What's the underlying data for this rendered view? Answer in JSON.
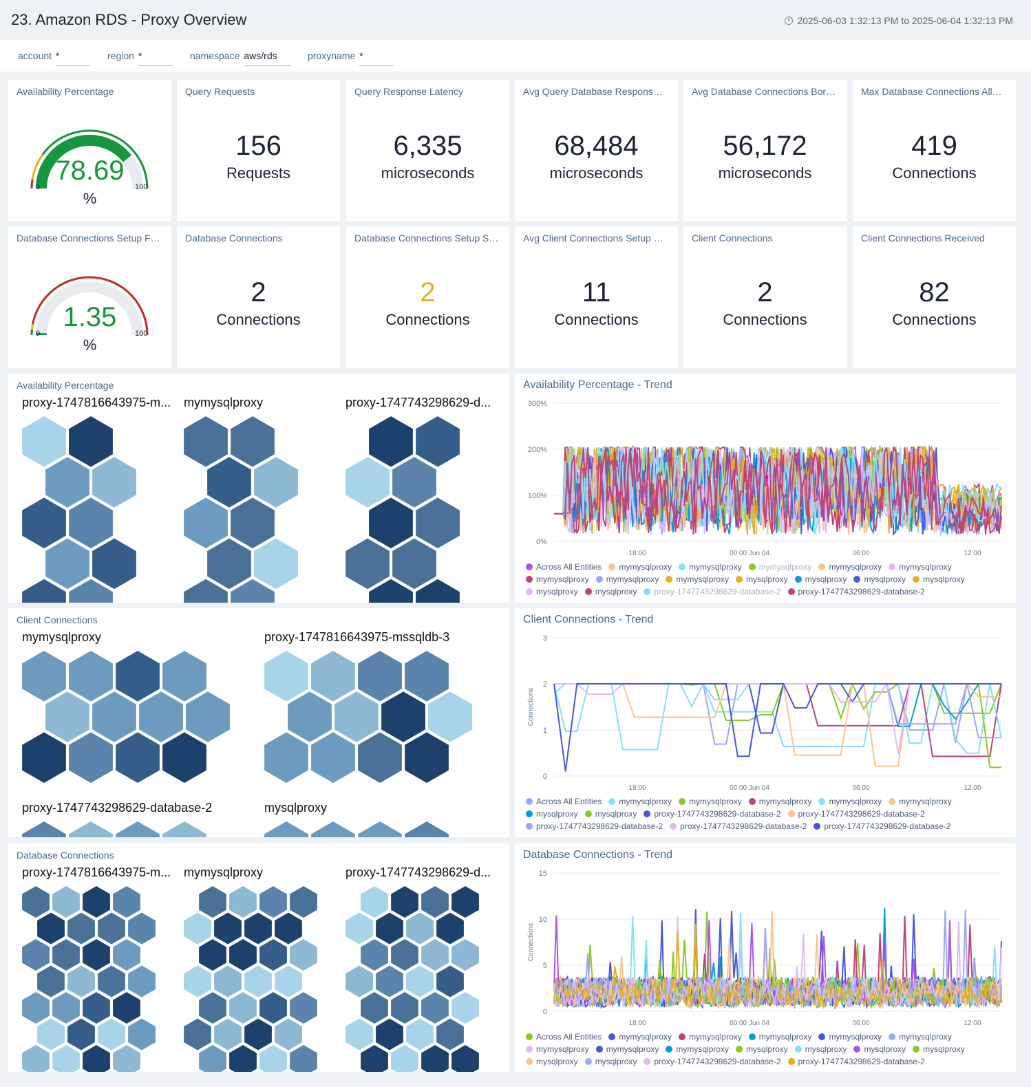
{
  "header": {
    "title": "23. Amazon RDS - Proxy Overview",
    "time_range": "2025-06-03 1:32:13 PM to 2025-06-04 1:32:13 PM"
  },
  "filters": [
    {
      "label": "account",
      "value": "*"
    },
    {
      "label": "region",
      "value": "*"
    },
    {
      "label": "namespace",
      "value": "aws/rds"
    },
    {
      "label": "proxyname",
      "value": "*"
    }
  ],
  "gauges": [
    {
      "title": "Availability Percentage",
      "value": "78.69",
      "fraction": 0.7869,
      "unit": "%",
      "min": "0",
      "max": "100",
      "color": "#16963f"
    },
    {
      "title": "Database Connections Setup Failed",
      "value": "1.35",
      "fraction": 0.0135,
      "unit": "%",
      "min": "0",
      "max": "100",
      "color": "#16963f"
    }
  ],
  "stats": [
    {
      "title": "Query Requests",
      "value": "156",
      "unit": "Requests",
      "color": "#1c2333"
    },
    {
      "title": "Query Response Latency",
      "value": "6,335",
      "unit": "microseconds",
      "color": "#1c2333"
    },
    {
      "title": "Avg Query Database Response Latency",
      "value": "68,484",
      "unit": "microseconds",
      "color": "#1c2333"
    },
    {
      "title": "Avg Database Connections Borrow Latency",
      "value": "56,172",
      "unit": "microseconds",
      "color": "#1c2333"
    },
    {
      "title": "Max Database Connections Allowed",
      "value": "419",
      "unit": "Connections",
      "color": "#1c2333"
    },
    {
      "title": "Database Connections",
      "value": "2",
      "unit": "Connections",
      "color": "#1c2333"
    },
    {
      "title": "Database Connections Setup Succeeded",
      "value": "2",
      "unit": "Connections",
      "color": "#e0b320"
    },
    {
      "title": "Avg Client Connections Setup Succeeded",
      "value": "11",
      "unit": "Connections",
      "color": "#1c2333"
    },
    {
      "title": "Client Connections",
      "value": "2",
      "unit": "Connections",
      "color": "#1c2333"
    },
    {
      "title": "Client Connections Received",
      "value": "82",
      "unit": "Connections",
      "color": "#1c2333"
    }
  ],
  "honeycombs": [
    {
      "title": "Availability Percentage",
      "groups": [
        "proxy-1747816643975-m...",
        "mymysqlproxy",
        "proxy-1747743298629-d..."
      ]
    },
    {
      "title": "Client Connections",
      "groups": [
        "mymysqlproxy",
        "proxy-1747816643975-mssqldb-3",
        "proxy-1747743298629-database-2",
        "mysqlproxy"
      ]
    },
    {
      "title": "Database Connections",
      "groups": [
        "proxy-1747816643975-m...",
        "mymysqlproxy",
        "proxy-1747743298629-d..."
      ]
    }
  ],
  "hex_palette": [
    "#a8d4ea",
    "#8cb8d4",
    "#6d9bbf",
    "#5a84ab",
    "#4a7299",
    "#355d8a",
    "#1d416d"
  ],
  "trends": [
    {
      "title": "Availability Percentage - Trend",
      "yticks": [
        "300%",
        "200%",
        "100%",
        "0%"
      ],
      "ylabel": "",
      "xticks": [
        "18:00",
        "00:00 Jun 04",
        "06:00",
        "12:00"
      ],
      "legend": [
        [
          "Across All Entities",
          "#b052f0"
        ],
        [
          "mymysqlproxy",
          "#fdc38d"
        ],
        [
          "mymysqlproxy",
          "#86e0fb"
        ],
        [
          "mymysqlproxy",
          "#8ac926",
          1
        ],
        [
          "mymysqlproxy",
          "#fdc38d"
        ],
        [
          "mymysqlproxy",
          "#e2b8f8"
        ],
        [
          "mymysqlproxy",
          "#c0447a"
        ],
        [
          "mymysqlproxy",
          "#9ea7fa"
        ],
        [
          "mymysqlproxy",
          "#e0b320"
        ],
        [
          "mysqlproxy",
          "#e0b320"
        ],
        [
          "mysqlproxy",
          "#00a0d8"
        ],
        [
          "mysqlproxy",
          "#4a55e0"
        ],
        [
          "mysqlproxy",
          "#e0b320"
        ],
        [
          "mysqlproxy",
          "#e2b8f8"
        ],
        [
          "mysqlproxy",
          "#c0447a"
        ],
        [
          "proxy-1747743298629-database-2",
          "#86e0fb",
          1
        ],
        [
          "proxy-1747743298629-database-2",
          "#c0447a"
        ]
      ]
    },
    {
      "title": "Client Connections - Trend",
      "yticks": [
        "3",
        "2",
        "1",
        "0"
      ],
      "ylabel": "Connections",
      "xticks": [
        "18:00",
        "00:00 Jun 04",
        "06:00",
        "12:00"
      ],
      "legend": [
        [
          "Across All Entities",
          "#9ea7fa"
        ],
        [
          "mymysqlproxy",
          "#86e0fb"
        ],
        [
          "mymysqlproxy",
          "#8ac926"
        ],
        [
          "mymysqlproxy",
          "#c0447a"
        ],
        [
          "mymysqlproxy",
          "#86e0fb"
        ],
        [
          "mymysqlproxy",
          "#fdc38d"
        ],
        [
          "mysqlproxy",
          "#00a0d8"
        ],
        [
          "mysqlproxy",
          "#8ac926"
        ],
        [
          "proxy-1747743298629-database-2",
          "#4a55e0"
        ],
        [
          "proxy-1747743298629-database-2",
          "#fdc38d"
        ],
        [
          "proxy-1747743298629-database-2",
          "#9ea7fa"
        ],
        [
          "proxy-1747743298629-database-2",
          "#e2b8f8"
        ],
        [
          "proxy-1747743298629-database-2",
          "#4a55e0"
        ]
      ]
    },
    {
      "title": "Database Connections - Trend",
      "yticks": [
        "15",
        "10",
        "5",
        "0"
      ],
      "ylabel": "Connections",
      "xticks": [
        "18:00",
        "00:00 Jun 04",
        "06:00",
        "12:00"
      ],
      "legend": [
        [
          "Across All Entities",
          "#8ac926"
        ],
        [
          "mymysqlproxy",
          "#4a55e0"
        ],
        [
          "mymysqlproxy",
          "#c0447a"
        ],
        [
          "mymysqlproxy",
          "#00a0d8"
        ],
        [
          "mymysqlproxy",
          "#4a55e0"
        ],
        [
          "mymysqlproxy",
          "#9ea7fa"
        ],
        [
          "mymysqlproxy",
          "#e2b8f8"
        ],
        [
          "mymysqlproxy",
          "#4a55e0"
        ],
        [
          "mymysqlproxy",
          "#00a0d8"
        ],
        [
          "mysqlproxy",
          "#8ac926"
        ],
        [
          "mysqlproxy",
          "#86e0fb"
        ],
        [
          "mysqlproxy",
          "#b052f0"
        ],
        [
          "mysqlproxy",
          "#8ac926"
        ],
        [
          "mysqlproxy",
          "#fdc38d"
        ],
        [
          "mysqlproxy",
          "#9ea7fa"
        ],
        [
          "proxy-1747743298629-database-2",
          "#e2b8f8"
        ],
        [
          "proxy-1747743298629-database-2",
          "#e0b320"
        ]
      ]
    }
  ]
}
